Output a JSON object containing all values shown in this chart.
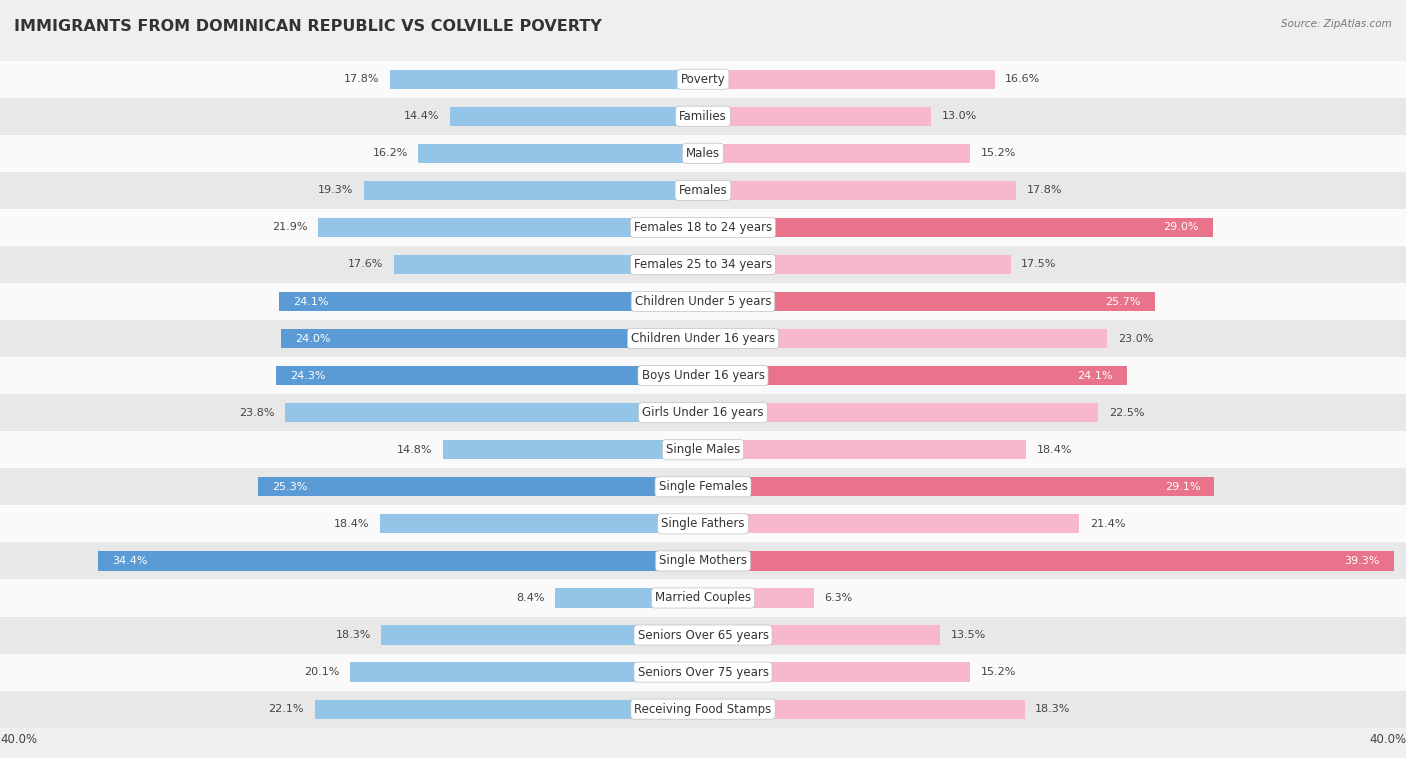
{
  "title": "IMMIGRANTS FROM DOMINICAN REPUBLIC VS COLVILLE POVERTY",
  "source": "Source: ZipAtlas.com",
  "categories": [
    "Poverty",
    "Families",
    "Males",
    "Females",
    "Females 18 to 24 years",
    "Females 25 to 34 years",
    "Children Under 5 years",
    "Children Under 16 years",
    "Boys Under 16 years",
    "Girls Under 16 years",
    "Single Males",
    "Single Females",
    "Single Fathers",
    "Single Mothers",
    "Married Couples",
    "Seniors Over 65 years",
    "Seniors Over 75 years",
    "Receiving Food Stamps"
  ],
  "left_values": [
    17.8,
    14.4,
    16.2,
    19.3,
    21.9,
    17.6,
    24.1,
    24.0,
    24.3,
    23.8,
    14.8,
    25.3,
    18.4,
    34.4,
    8.4,
    18.3,
    20.1,
    22.1
  ],
  "right_values": [
    16.6,
    13.0,
    15.2,
    17.8,
    29.0,
    17.5,
    25.7,
    23.0,
    24.1,
    22.5,
    18.4,
    29.1,
    21.4,
    39.3,
    6.3,
    13.5,
    15.2,
    18.3
  ],
  "left_color_normal": "#92C5E8",
  "left_color_highlight": "#5B9BD5",
  "right_color_normal": "#F7B8CB",
  "right_color_highlight": "#E8738A",
  "highlight_threshold": 24.0,
  "left_label": "Immigrants from Dominican Republic",
  "right_label": "Colville",
  "axis_max": 40.0,
  "bg_color": "#EFEFEF",
  "row_light": "#FAFAFA",
  "row_dark": "#E8E8E8",
  "title_fontsize": 11.5,
  "cat_fontsize": 8.5,
  "val_fontsize": 8.0
}
